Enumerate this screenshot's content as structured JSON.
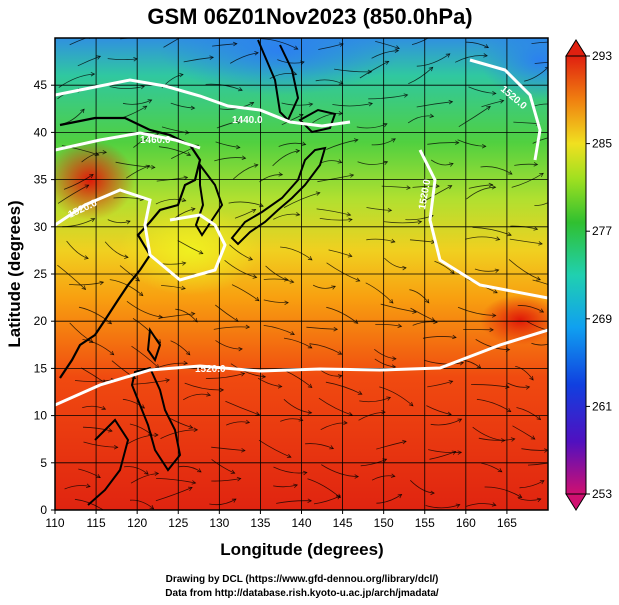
{
  "title": "GSM 06Z01Nov2023 (850.0hPa)",
  "x_axis": {
    "label": "Longitude (degrees)",
    "range": [
      110,
      170
    ],
    "ticks": [
      "110",
      "115",
      "120",
      "125",
      "130",
      "135",
      "140",
      "145",
      "150",
      "155",
      "160",
      "165"
    ]
  },
  "y_axis": {
    "label": "Latitude (degrees)",
    "range": [
      0,
      50
    ],
    "ticks": [
      "0",
      "5",
      "10",
      "15",
      "20",
      "25",
      "30",
      "35",
      "40",
      "45"
    ]
  },
  "colorbar": {
    "ticks": [
      "293",
      "285",
      "277",
      "269",
      "261",
      "253"
    ],
    "range": [
      253,
      293
    ],
    "colors": [
      "#d01070",
      "#3010c0",
      "#1e80ff",
      "#20d0d0",
      "#30c030",
      "#a0e020",
      "#f0e020",
      "#f08010",
      "#e02010"
    ]
  },
  "contour_labels": [
    "1440.0",
    "1460.0",
    "1520.0",
    "1520.0",
    "1520.0",
    "1520.0"
  ],
  "credits": {
    "line1": "Drawing by DCL (https://www.gfd-dennou.org/library/dcl/)",
    "line2": "Data from http://database.rish.kyoto-u.ac.jp/arch/jmadata/"
  }
}
